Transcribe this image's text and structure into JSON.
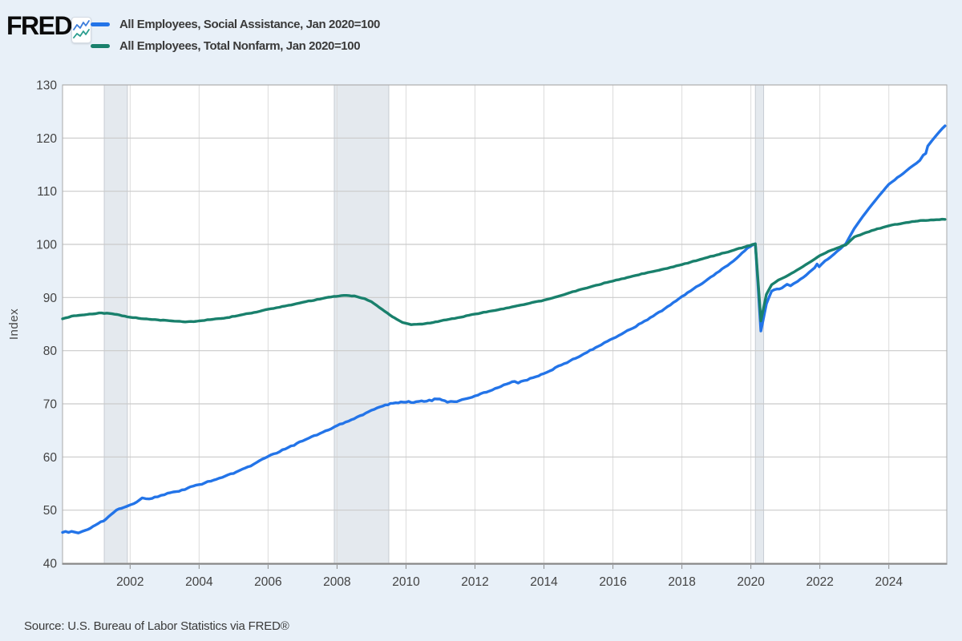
{
  "header": {
    "logo_text": "FRED",
    "registered_mark": "®"
  },
  "legend": [
    {
      "label": "All Employees, Social Assistance, Jan 2020=100",
      "color": "#2374e8"
    },
    {
      "label": "All Employees, Total Nonfarm, Jan 2020=100",
      "color": "#19806c"
    }
  ],
  "source_note": "Source: U.S. Bureau of Labor Statistics via FRED®",
  "colors": {
    "background": "#e8f0f8",
    "plot_background": "#ffffff",
    "grid_horizontal": "#cacaca",
    "grid_vertical": "#dcdcdc",
    "plot_border": "#a9a9a9",
    "axis_line": "#878787",
    "tick_label": "#424242",
    "axis_title": "#4a4a4a",
    "recession_fill": "#e4e9ee",
    "recession_edge": "#c7ccd3",
    "series_blue": "#2374e8",
    "series_green": "#19806c"
  },
  "chart_data": {
    "type": "line",
    "title": "",
    "xlabel": "",
    "ylabel": "Index",
    "ylim": [
      40,
      130
    ],
    "x_range": [
      2000.04,
      2025.68
    ],
    "y_ticks": [
      40,
      50,
      60,
      70,
      80,
      90,
      100,
      110,
      120,
      130
    ],
    "x_ticks": [
      2002,
      2004,
      2006,
      2008,
      2010,
      2012,
      2014,
      2016,
      2018,
      2020,
      2022,
      2024
    ],
    "grid": true,
    "legend_position": "top-left",
    "recession_bands": [
      [
        2001.25,
        2001.92
      ],
      [
        2007.92,
        2009.5
      ],
      [
        2020.13,
        2020.37
      ]
    ],
    "series": [
      {
        "name": "All Employees, Social Assistance, Jan 2020=100",
        "color": "#2374e8",
        "jitter": 0.16,
        "points": [
          [
            2000.04,
            45.8
          ],
          [
            2000.3,
            46.0
          ],
          [
            2000.5,
            45.7
          ],
          [
            2000.7,
            46.2
          ],
          [
            2001.0,
            47.2
          ],
          [
            2001.3,
            48.3
          ],
          [
            2001.6,
            50.0
          ],
          [
            2001.9,
            50.7
          ],
          [
            2002.1,
            51.2
          ],
          [
            2002.35,
            52.3
          ],
          [
            2002.55,
            52.1
          ],
          [
            2002.8,
            52.5
          ],
          [
            2003.0,
            52.9
          ],
          [
            2003.5,
            53.8
          ],
          [
            2004.0,
            54.8
          ],
          [
            2004.5,
            55.8
          ],
          [
            2005.0,
            56.9
          ],
          [
            2005.5,
            58.3
          ],
          [
            2006.0,
            60.1
          ],
          [
            2006.5,
            61.5
          ],
          [
            2007.0,
            63.0
          ],
          [
            2007.5,
            64.4
          ],
          [
            2008.0,
            65.9
          ],
          [
            2008.5,
            67.2
          ],
          [
            2009.0,
            68.8
          ],
          [
            2009.4,
            69.8
          ],
          [
            2009.7,
            70.2
          ],
          [
            2010.0,
            70.3
          ],
          [
            2010.3,
            70.4
          ],
          [
            2010.6,
            70.5
          ],
          [
            2010.9,
            70.9
          ],
          [
            2011.05,
            70.7
          ],
          [
            2011.2,
            70.3
          ],
          [
            2011.4,
            70.4
          ],
          [
            2011.7,
            70.9
          ],
          [
            2012.0,
            71.5
          ],
          [
            2012.5,
            72.6
          ],
          [
            2013.0,
            73.9
          ],
          [
            2013.15,
            74.2
          ],
          [
            2013.25,
            73.9
          ],
          [
            2013.6,
            74.8
          ],
          [
            2014.0,
            75.7
          ],
          [
            2014.5,
            77.3
          ],
          [
            2015.0,
            78.8
          ],
          [
            2015.5,
            80.6
          ],
          [
            2016.0,
            82.3
          ],
          [
            2016.5,
            84.0
          ],
          [
            2017.0,
            85.8
          ],
          [
            2017.5,
            87.9
          ],
          [
            2018.0,
            90.2
          ],
          [
            2018.5,
            92.3
          ],
          [
            2019.0,
            94.6
          ],
          [
            2019.5,
            96.9
          ],
          [
            2019.9,
            99.3
          ],
          [
            2020.13,
            100.1
          ],
          [
            2020.29,
            83.7
          ],
          [
            2020.45,
            88.8
          ],
          [
            2020.6,
            91.2
          ],
          [
            2020.75,
            91.6
          ],
          [
            2020.9,
            91.8
          ],
          [
            2021.05,
            92.5
          ],
          [
            2021.15,
            92.2
          ],
          [
            2021.35,
            93.0
          ],
          [
            2021.6,
            94.2
          ],
          [
            2021.85,
            95.6
          ],
          [
            2021.92,
            96.3
          ],
          [
            2021.98,
            95.8
          ],
          [
            2022.15,
            96.9
          ],
          [
            2022.4,
            98.1
          ],
          [
            2022.6,
            99.2
          ],
          [
            2022.75,
            100.1
          ],
          [
            2023.0,
            103.0
          ],
          [
            2023.25,
            105.3
          ],
          [
            2023.5,
            107.4
          ],
          [
            2023.75,
            109.4
          ],
          [
            2024.0,
            111.3
          ],
          [
            2024.25,
            112.6
          ],
          [
            2024.5,
            113.8
          ],
          [
            2024.7,
            114.8
          ],
          [
            2024.9,
            115.8
          ],
          [
            2025.0,
            116.8
          ],
          [
            2025.07,
            117.1
          ],
          [
            2025.13,
            118.5
          ],
          [
            2025.25,
            119.5
          ],
          [
            2025.4,
            120.7
          ],
          [
            2025.55,
            121.8
          ],
          [
            2025.63,
            122.3
          ]
        ]
      },
      {
        "name": "All Employees, Total Nonfarm, Jan 2020=100",
        "color": "#19806c",
        "jitter": 0.06,
        "points": [
          [
            2000.04,
            86.0
          ],
          [
            2000.3,
            86.5
          ],
          [
            2000.6,
            86.7
          ],
          [
            2000.9,
            86.9
          ],
          [
            2001.1,
            87.1
          ],
          [
            2001.4,
            87.0
          ],
          [
            2001.7,
            86.7
          ],
          [
            2002.0,
            86.3
          ],
          [
            2002.4,
            86.0
          ],
          [
            2002.8,
            85.8
          ],
          [
            2003.2,
            85.6
          ],
          [
            2003.6,
            85.4
          ],
          [
            2004.0,
            85.6
          ],
          [
            2004.4,
            85.9
          ],
          [
            2004.8,
            86.2
          ],
          [
            2005.2,
            86.7
          ],
          [
            2005.6,
            87.2
          ],
          [
            2006.0,
            87.8
          ],
          [
            2006.5,
            88.4
          ],
          [
            2007.0,
            89.1
          ],
          [
            2007.5,
            89.7
          ],
          [
            2007.9,
            90.2
          ],
          [
            2008.2,
            90.4
          ],
          [
            2008.5,
            90.3
          ],
          [
            2008.8,
            89.8
          ],
          [
            2009.0,
            89.2
          ],
          [
            2009.3,
            87.8
          ],
          [
            2009.6,
            86.4
          ],
          [
            2009.9,
            85.3
          ],
          [
            2010.15,
            84.9
          ],
          [
            2010.4,
            85.0
          ],
          [
            2010.7,
            85.2
          ],
          [
            2011.0,
            85.6
          ],
          [
            2011.5,
            86.2
          ],
          [
            2012.0,
            86.9
          ],
          [
            2012.5,
            87.5
          ],
          [
            2013.0,
            88.1
          ],
          [
            2013.5,
            88.8
          ],
          [
            2014.0,
            89.5
          ],
          [
            2014.5,
            90.4
          ],
          [
            2015.0,
            91.4
          ],
          [
            2015.5,
            92.3
          ],
          [
            2016.0,
            93.1
          ],
          [
            2016.5,
            93.9
          ],
          [
            2017.0,
            94.7
          ],
          [
            2017.5,
            95.4
          ],
          [
            2018.0,
            96.2
          ],
          [
            2018.5,
            97.1
          ],
          [
            2019.0,
            98.0
          ],
          [
            2019.5,
            98.9
          ],
          [
            2019.9,
            99.7
          ],
          [
            2020.13,
            100.1
          ],
          [
            2020.29,
            85.6
          ],
          [
            2020.45,
            90.6
          ],
          [
            2020.6,
            92.4
          ],
          [
            2020.8,
            93.3
          ],
          [
            2021.0,
            93.9
          ],
          [
            2021.25,
            94.8
          ],
          [
            2021.5,
            95.8
          ],
          [
            2021.75,
            96.8
          ],
          [
            2022.0,
            97.9
          ],
          [
            2022.25,
            98.7
          ],
          [
            2022.5,
            99.3
          ],
          [
            2022.75,
            99.9
          ],
          [
            2023.0,
            101.4
          ],
          [
            2023.25,
            102.0
          ],
          [
            2023.5,
            102.6
          ],
          [
            2024.0,
            103.5
          ],
          [
            2024.5,
            104.1
          ],
          [
            2025.0,
            104.5
          ],
          [
            2025.3,
            104.6
          ],
          [
            2025.63,
            104.7
          ]
        ]
      }
    ]
  }
}
